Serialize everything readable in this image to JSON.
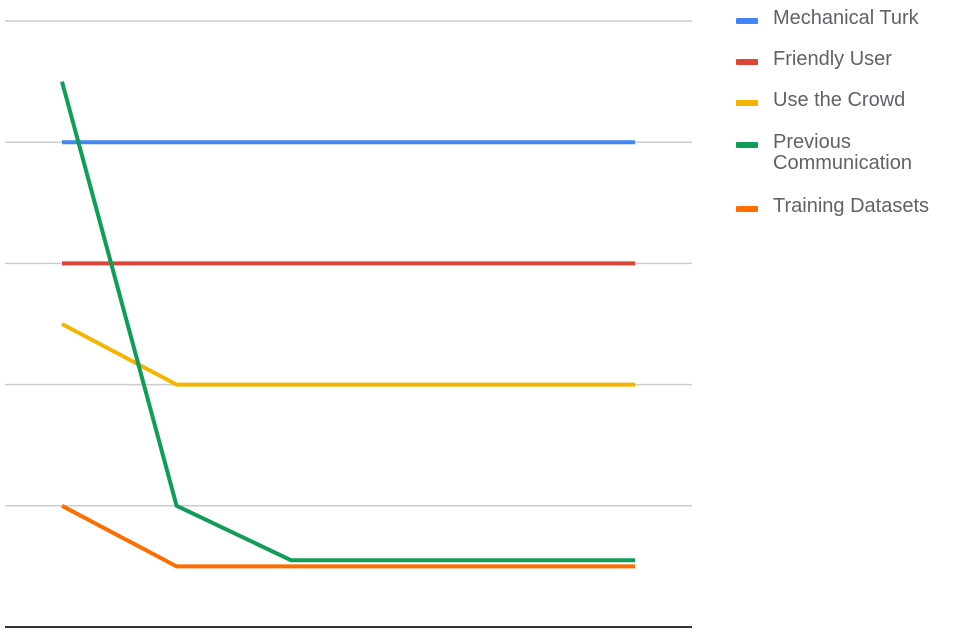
{
  "chart_data": {
    "type": "line",
    "title": "",
    "xlabel": "",
    "ylabel": "",
    "x": [
      1,
      2,
      3,
      4,
      5,
      6
    ],
    "ylim": [
      0,
      5
    ],
    "grid": true,
    "legend_position": "right",
    "series": [
      {
        "name": "Mechanical Turk",
        "color": "#4285f4",
        "values": [
          4,
          4,
          4,
          4,
          4,
          4
        ]
      },
      {
        "name": "Friendly User",
        "color": "#db4437",
        "values": [
          3,
          3,
          3,
          3,
          3,
          3
        ]
      },
      {
        "name": "Use the Crowd",
        "color": "#f4b400",
        "values": [
          2.5,
          2,
          2,
          2,
          2,
          2
        ]
      },
      {
        "name": "Previous Communication",
        "color": "#0f9d58",
        "values": [
          4.5,
          1,
          0.55,
          0.55,
          0.55,
          0.55
        ]
      },
      {
        "name": "Training Datasets",
        "color": "#ff6d00",
        "values": [
          1,
          0.5,
          0.5,
          0.5,
          0.5,
          0.5
        ]
      }
    ]
  },
  "legend": [
    {
      "label": "Mechanical Turk",
      "color": "#4285f4"
    },
    {
      "label": "Friendly User",
      "color": "#db4437"
    },
    {
      "label": "Use the Crowd",
      "color": "#f4b400"
    },
    {
      "label": "Previous\nCommunication",
      "color": "#0f9d58"
    },
    {
      "label": "Training Datasets",
      "color": "#ff6d00"
    }
  ]
}
